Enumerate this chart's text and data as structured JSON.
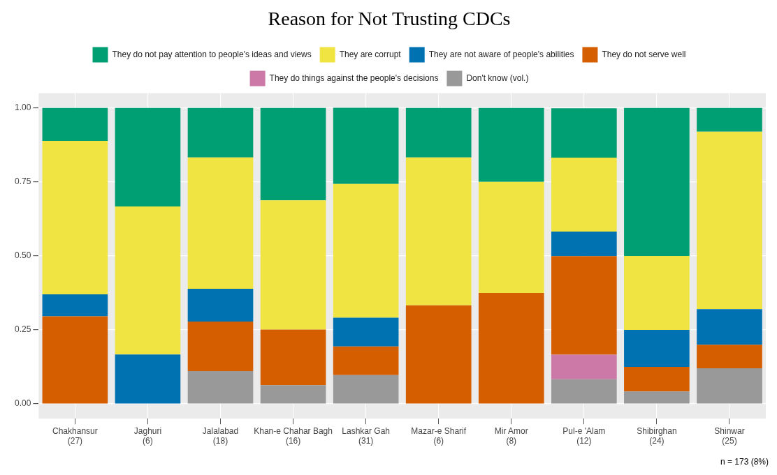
{
  "chart_data": {
    "type": "bar",
    "title": "Reason for Not Trusting CDCs",
    "categories": [
      "Chakhansur\n(27)",
      "Jaghuri\n(6)",
      "Jalalabad\n(18)",
      "Khan-e Chahar Bagh\n(16)",
      "Lashkar Gah\n(31)",
      "Mazar-e Sharif\n(6)",
      "Mir Amor\n(8)",
      "Pul-e 'Alam\n(12)",
      "Shibirghan\n(24)",
      "Shinwar\n(25)"
    ],
    "series": [
      {
        "name": "Don't know (vol.)",
        "color": "#999999",
        "values": [
          0,
          0,
          0.111,
          0.063,
          0.097,
          0,
          0,
          0.083,
          0.042,
          0.12
        ]
      },
      {
        "name": "They do things against the people's decisions",
        "color": "#cc79a7",
        "values": [
          0,
          0,
          0,
          0,
          0,
          0,
          0,
          0.083,
          0,
          0
        ]
      },
      {
        "name": "They do not serve well",
        "color": "#d55e00",
        "values": [
          0.296,
          0,
          0.167,
          0.188,
          0.097,
          0.333,
          0.375,
          0.333,
          0.083,
          0.08
        ]
      },
      {
        "name": "They are not aware of people's abilities",
        "color": "#0072b2",
        "values": [
          0.074,
          0.167,
          0.111,
          0,
          0.097,
          0,
          0,
          0.083,
          0.125,
          0.12
        ]
      },
      {
        "name": "They are corrupt",
        "color": "#f0e442",
        "values": [
          0.519,
          0.5,
          0.444,
          0.437,
          0.452,
          0.5,
          0.375,
          0.25,
          0.25,
          0.6
        ]
      },
      {
        "name": "They do not pay attention to people's ideas and views",
        "color": "#009e73",
        "values": [
          0.111,
          0.333,
          0.167,
          0.312,
          0.258,
          0.167,
          0.25,
          0.167,
          0.5,
          0.08
        ]
      }
    ],
    "stacked": true,
    "ylim": [
      -0.05,
      1.05
    ],
    "yticks": [
      {
        "value": 0,
        "label": "0.00"
      },
      {
        "value": 0.25,
        "label": "0.25"
      },
      {
        "value": 0.5,
        "label": "0.50"
      },
      {
        "value": 0.75,
        "label": "0.75"
      },
      {
        "value": 1,
        "label": "1.00"
      }
    ],
    "grid": true,
    "legend": "top",
    "annotations": [
      "n = 173 (8%)"
    ]
  }
}
